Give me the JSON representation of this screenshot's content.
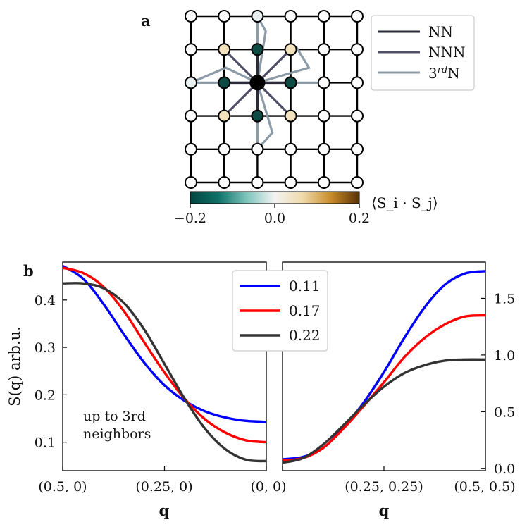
{
  "panel_a": {
    "label": "a",
    "legend": [
      {
        "label": "NN",
        "color": "#2b2b3a"
      },
      {
        "label": "NNN",
        "color": "#4f5068"
      },
      {
        "label": "3rd",
        "sup": "rd",
        "base": "3",
        "suffix": "N",
        "color": "#8c9ba8"
      }
    ],
    "colorbar": {
      "label": "⟨S_i · S_j⟩",
      "ticks": [
        "−0.2",
        "0.0",
        "0.2"
      ],
      "range": [
        -0.2,
        0.2
      ],
      "colors": [
        "#01463f",
        "#0f7068",
        "#7cc5bc",
        "#f3f3f3",
        "#efd9a7",
        "#c98b2a",
        "#573005"
      ]
    },
    "lattice": {
      "size": 6,
      "center": [
        2,
        2
      ],
      "sites": [
        {
          "col": 2,
          "row": 1,
          "color": "#0c4a43"
        },
        {
          "col": 1,
          "row": 2,
          "color": "#0c4a43"
        },
        {
          "col": 3,
          "row": 2,
          "color": "#0c4a43"
        },
        {
          "col": 2,
          "row": 3,
          "color": "#0c4a43"
        },
        {
          "col": 1,
          "row": 1,
          "color": "#f2e2bd"
        },
        {
          "col": 3,
          "row": 1,
          "color": "#f2e2bd"
        },
        {
          "col": 1,
          "row": 3,
          "color": "#f2e2bd"
        },
        {
          "col": 3,
          "row": 3,
          "color": "#f2e2bd"
        },
        {
          "col": 2,
          "row": 0,
          "color": "#e8f0ef"
        },
        {
          "col": 0,
          "row": 2,
          "color": "#e8f0ef"
        }
      ]
    }
  },
  "chart_data": [
    {
      "type": "line",
      "panel": "b-left",
      "label": "b",
      "xlabel": "q",
      "ylabel": "S(q) arb.u.",
      "x_ticks": [
        "(0.5, 0)",
        "(0.25, 0)",
        "(0, 0)"
      ],
      "ylim": [
        0.04,
        0.48
      ],
      "y_ticks": [
        0.1,
        0.2,
        0.3,
        0.4
      ],
      "annotation": [
        "up to 3rd",
        "neighbors"
      ],
      "series": [
        {
          "name": "0.11",
          "color": "#0000ff",
          "x": [
            0,
            0.1,
            0.2,
            0.3,
            0.4,
            0.5,
            0.6,
            0.7,
            0.8,
            0.9,
            1.0
          ],
          "values": [
            0.472,
            0.445,
            0.392,
            0.328,
            0.268,
            0.22,
            0.187,
            0.165,
            0.152,
            0.145,
            0.143
          ]
        },
        {
          "name": "0.17",
          "color": "#ff0000",
          "x": [
            0,
            0.1,
            0.2,
            0.3,
            0.4,
            0.5,
            0.6,
            0.7,
            0.8,
            0.9,
            1.0
          ],
          "values": [
            0.468,
            0.457,
            0.428,
            0.377,
            0.311,
            0.247,
            0.191,
            0.148,
            0.12,
            0.104,
            0.1
          ]
        },
        {
          "name": "0.22",
          "color": "#333333",
          "x": [
            0,
            0.1,
            0.2,
            0.3,
            0.4,
            0.5,
            0.6,
            0.7,
            0.8,
            0.9,
            1.0
          ],
          "values": [
            0.435,
            0.435,
            0.425,
            0.394,
            0.338,
            0.265,
            0.191,
            0.128,
            0.085,
            0.063,
            0.06
          ]
        }
      ]
    },
    {
      "type": "line",
      "panel": "b-right",
      "xlabel": "q",
      "x_ticks": [
        "(0.25, 0.25)",
        "(0.5, 0.5)"
      ],
      "ylim": [
        -0.02,
        1.82
      ],
      "y_ticks": [
        0.0,
        0.5,
        1.0,
        1.5
      ],
      "legend": [
        "0.11",
        "0.17",
        "0.22"
      ],
      "series": [
        {
          "name": "0.11",
          "color": "#0000ff",
          "x": [
            0,
            0.1,
            0.2,
            0.3,
            0.4,
            0.5,
            0.6,
            0.7,
            0.8,
            0.9,
            1.0
          ],
          "values": [
            0.08,
            0.1,
            0.18,
            0.36,
            0.58,
            0.85,
            1.15,
            1.42,
            1.62,
            1.72,
            1.74
          ]
        },
        {
          "name": "0.17",
          "color": "#ff0000",
          "x": [
            0,
            0.1,
            0.2,
            0.3,
            0.4,
            0.5,
            0.6,
            0.7,
            0.8,
            0.9,
            1.0
          ],
          "values": [
            0.07,
            0.09,
            0.18,
            0.35,
            0.55,
            0.76,
            0.98,
            1.15,
            1.27,
            1.34,
            1.35
          ]
        },
        {
          "name": "0.22",
          "color": "#333333",
          "x": [
            0,
            0.1,
            0.2,
            0.3,
            0.4,
            0.5,
            0.6,
            0.7,
            0.8,
            0.9,
            1.0
          ],
          "values": [
            0.05,
            0.09,
            0.21,
            0.38,
            0.56,
            0.72,
            0.84,
            0.91,
            0.95,
            0.96,
            0.96
          ]
        }
      ]
    }
  ]
}
